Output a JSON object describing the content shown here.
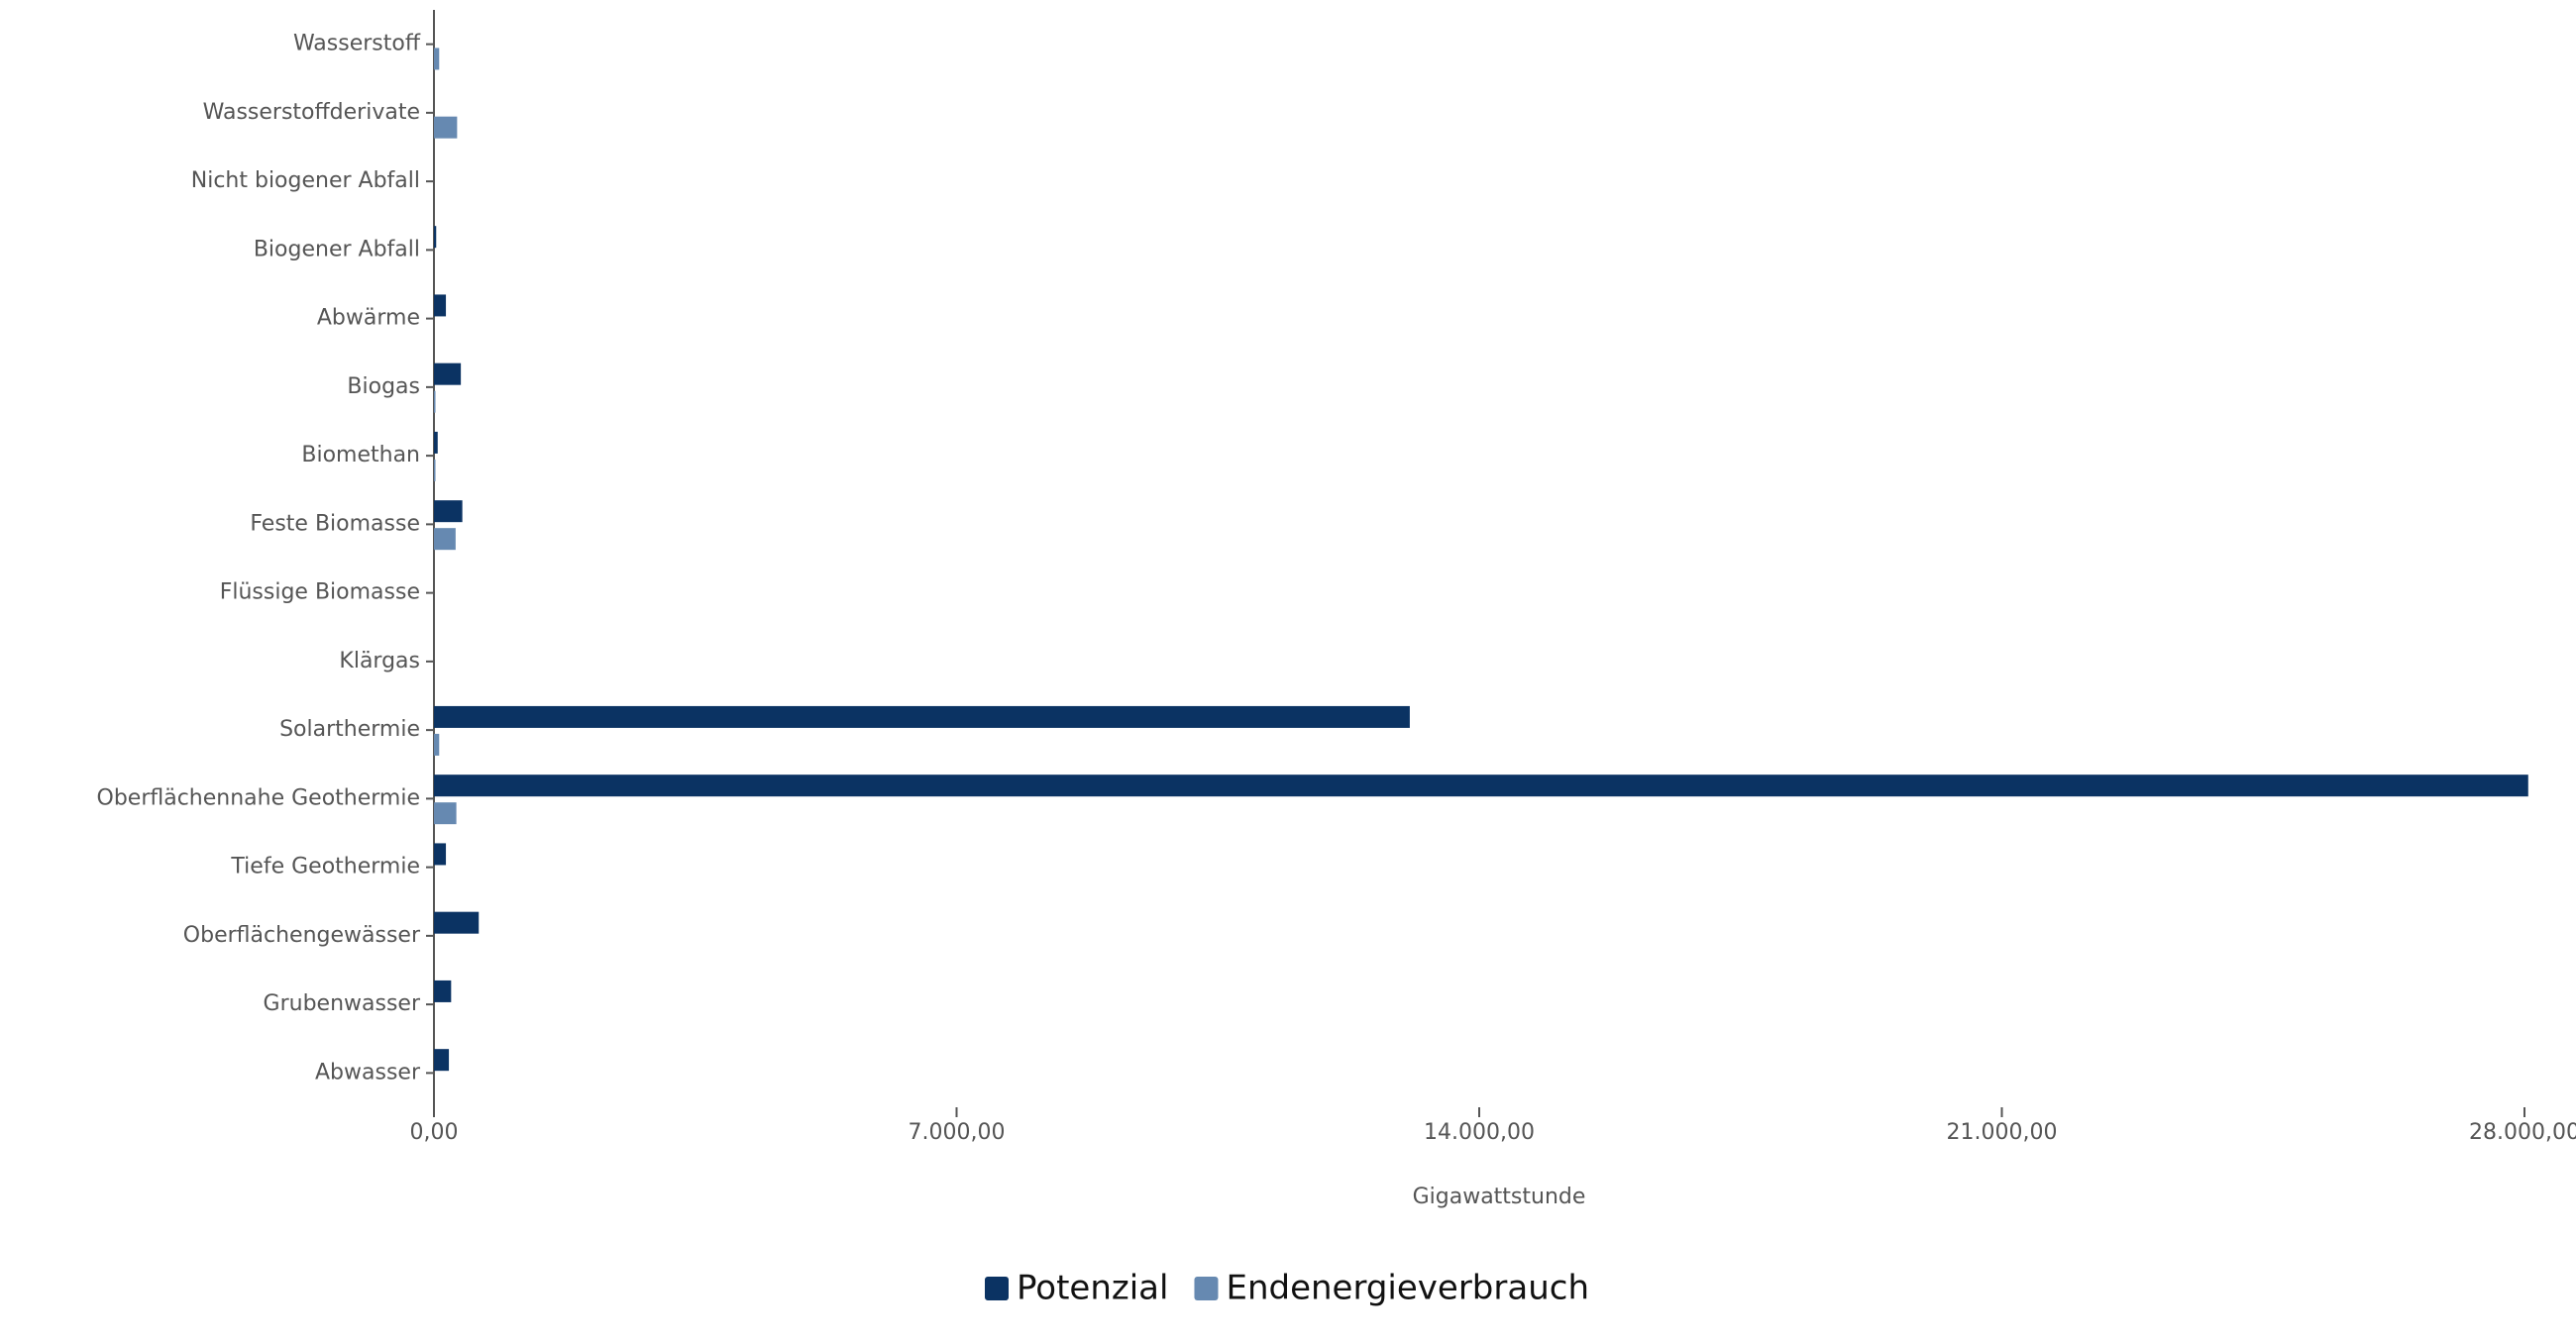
{
  "chart_data": {
    "type": "bar",
    "orientation": "horizontal",
    "categories": [
      "Wasserstoff",
      "Wasserstoffderivate",
      "Nicht biogener Abfall",
      "Biogener Abfall",
      "Abwärme",
      "Biogas",
      "Biomethan",
      "Feste Biomasse",
      "Flüssige Biomasse",
      "Klärgas",
      "Solarthermie",
      "Oberflächennahe Geothermie",
      "Tiefe Geothermie",
      "Oberflächengewässer",
      "Grubenwasser",
      "Abwasser"
    ],
    "series": [
      {
        "name": "Potenzial",
        "color": "#0b3363",
        "values": [
          0,
          0,
          0,
          30,
          160,
          360,
          50,
          380,
          0,
          0,
          13070,
          28050,
          160,
          600,
          230,
          200
        ]
      },
      {
        "name": "Endenergieverbrauch",
        "color": "#6689b1",
        "values": [
          70,
          310,
          0,
          0,
          0,
          20,
          20,
          290,
          0,
          0,
          70,
          300,
          0,
          0,
          0,
          0
        ]
      }
    ],
    "xlabel": "Gigawattstunde",
    "xlim": [
      0,
      28000
    ],
    "xticks": [
      {
        "value": 0,
        "label": "0,00"
      },
      {
        "value": 7000,
        "label": "7.000,00"
      },
      {
        "value": 14000,
        "label": "14.000,00"
      },
      {
        "value": 21000,
        "label": "21.000,00"
      },
      {
        "value": 28000,
        "label": "28.000,00"
      }
    ],
    "grid": false,
    "legend": "bottom"
  }
}
